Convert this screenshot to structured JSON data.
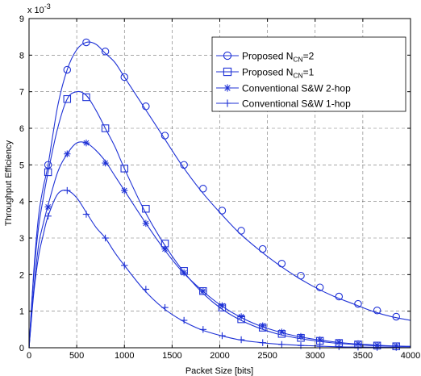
{
  "chart_data": {
    "type": "line",
    "xlabel": "Packet Size [bits]",
    "ylabel": "Throughput Efficiency",
    "y_multiplier": "x 10",
    "y_multiplier_exp": "-3",
    "xlim": [
      0,
      4000
    ],
    "ylim": [
      0,
      9
    ],
    "xticks": [
      "0",
      "500",
      "1000",
      "1500",
      "2000",
      "2500",
      "3000",
      "3500",
      "4000"
    ],
    "yticks": [
      "0",
      "1",
      "2",
      "3",
      "4",
      "5",
      "6",
      "7",
      "8",
      "9"
    ],
    "grid": true,
    "legend_position": "top-right",
    "line_color": "#1f32d6",
    "series": [
      {
        "name": "Proposed N",
        "name_sub": "CN",
        "name_suffix": "=2",
        "marker": "circle",
        "x": [
          0,
          50,
          100,
          150,
          200,
          300,
          400,
          500,
          600,
          700,
          800,
          900,
          1000,
          1200,
          1400,
          1600,
          1800,
          2000,
          2200,
          2400,
          2600,
          2800,
          3000,
          3200,
          3400,
          3600,
          3800,
          4000
        ],
        "y": [
          0,
          2.1,
          3.6,
          4.4,
          5.0,
          6.6,
          7.6,
          8.15,
          8.35,
          8.3,
          8.05,
          7.8,
          7.4,
          6.6,
          5.8,
          5.0,
          4.3,
          3.7,
          3.15,
          2.7,
          2.3,
          1.95,
          1.65,
          1.4,
          1.2,
          1.0,
          0.85,
          0.75
        ],
        "marker_x": [
          200,
          400,
          600,
          800,
          1000,
          1225,
          1425,
          1625,
          1825,
          2025,
          2225,
          2450,
          2650,
          2850,
          3050,
          3250,
          3450,
          3650,
          3850
        ],
        "marker_y": [
          5.0,
          7.6,
          8.35,
          8.1,
          7.4,
          6.6,
          5.8,
          5.0,
          4.35,
          3.75,
          3.2,
          2.7,
          2.3,
          1.97,
          1.65,
          1.4,
          1.2,
          1.02,
          0.85
        ]
      },
      {
        "name": "Proposed N",
        "name_sub": "CN",
        "name_suffix": "=1",
        "marker": "square",
        "x": [
          0,
          50,
          100,
          150,
          200,
          300,
          400,
          500,
          600,
          700,
          800,
          900,
          1000,
          1200,
          1400,
          1600,
          1800,
          2000,
          2200,
          2400,
          2600,
          2800,
          3000,
          3200,
          3400,
          3600,
          3800,
          4000
        ],
        "y": [
          0,
          2.0,
          3.3,
          4.1,
          4.8,
          6.0,
          6.8,
          7.0,
          6.9,
          6.5,
          6.0,
          5.5,
          4.9,
          3.8,
          2.9,
          2.15,
          1.55,
          1.1,
          0.78,
          0.55,
          0.38,
          0.27,
          0.19,
          0.13,
          0.09,
          0.06,
          0.04,
          0.03
        ],
        "marker_x": [
          200,
          400,
          600,
          800,
          1000,
          1225,
          1425,
          1625,
          1825,
          2025,
          2225,
          2450,
          2650,
          2850,
          3050,
          3250,
          3450,
          3650,
          3850
        ],
        "marker_y": [
          4.8,
          6.8,
          6.85,
          6.0,
          4.9,
          3.8,
          2.85,
          2.1,
          1.55,
          1.1,
          0.78,
          0.55,
          0.38,
          0.27,
          0.19,
          0.13,
          0.09,
          0.06,
          0.04
        ]
      },
      {
        "name": "Conventional S&W 2-hop",
        "marker": "asterisk",
        "x": [
          0,
          50,
          100,
          150,
          200,
          300,
          400,
          500,
          600,
          700,
          800,
          900,
          1000,
          1200,
          1400,
          1600,
          1800,
          2000,
          2200,
          2400,
          2600,
          2800,
          3000,
          3200,
          3400,
          3600,
          3800,
          4000
        ],
        "y": [
          0,
          1.6,
          2.8,
          3.4,
          3.9,
          4.8,
          5.3,
          5.6,
          5.6,
          5.4,
          5.1,
          4.7,
          4.3,
          3.5,
          2.75,
          2.1,
          1.6,
          1.18,
          0.86,
          0.62,
          0.45,
          0.32,
          0.23,
          0.16,
          0.11,
          0.08,
          0.05,
          0.04
        ],
        "marker_x": [
          200,
          400,
          600,
          800,
          1000,
          1225,
          1425,
          1625,
          1825,
          2025,
          2225,
          2450,
          2650,
          2850,
          3050,
          3250,
          3450,
          3650,
          3850
        ],
        "marker_y": [
          3.85,
          5.3,
          5.6,
          5.05,
          4.3,
          3.4,
          2.7,
          2.05,
          1.55,
          1.15,
          0.85,
          0.6,
          0.43,
          0.31,
          0.22,
          0.15,
          0.11,
          0.07,
          0.05
        ]
      },
      {
        "name": "Conventional S&W 1-hop",
        "marker": "plus",
        "x": [
          0,
          50,
          100,
          150,
          200,
          300,
          400,
          500,
          600,
          700,
          800,
          900,
          1000,
          1200,
          1400,
          1600,
          1800,
          2000,
          2200,
          2400,
          2600,
          2800,
          3000,
          3200,
          3400,
          3600,
          3800,
          4000
        ],
        "y": [
          0,
          1.5,
          2.5,
          3.1,
          3.6,
          4.2,
          4.3,
          4.1,
          3.7,
          3.3,
          3.0,
          2.6,
          2.25,
          1.6,
          1.1,
          0.75,
          0.5,
          0.34,
          0.22,
          0.15,
          0.1,
          0.07,
          0.05,
          0.03,
          0.02,
          0.015,
          0.01,
          0.005
        ],
        "marker_x": [
          200,
          400,
          600,
          800,
          1000,
          1225,
          1425,
          1625,
          1825,
          2025,
          2225,
          2450,
          2650,
          2850,
          3050,
          3250,
          3450,
          3650,
          3850
        ],
        "marker_y": [
          3.6,
          4.3,
          3.65,
          3.0,
          2.25,
          1.6,
          1.1,
          0.75,
          0.5,
          0.33,
          0.22,
          0.14,
          0.09,
          0.06,
          0.04,
          0.03,
          0.02,
          0.01,
          0.01
        ]
      }
    ]
  }
}
